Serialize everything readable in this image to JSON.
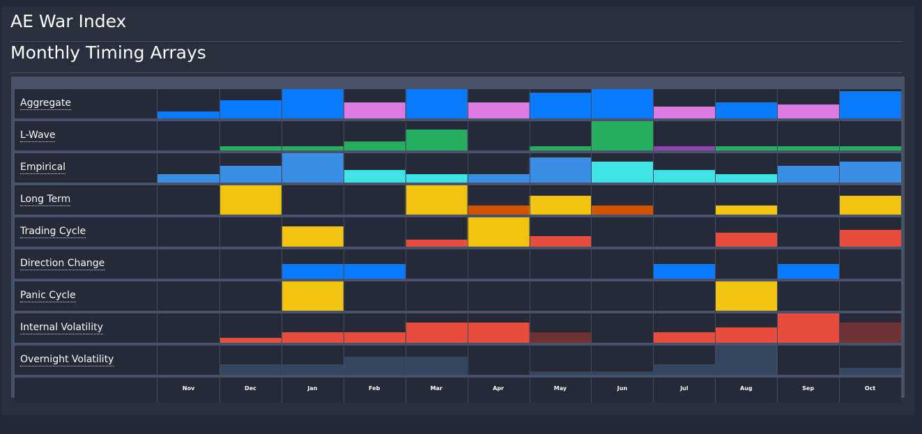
{
  "header": {
    "title": "AE War Index",
    "subtitle": "Monthly Timing Arrays"
  },
  "chart_data": {
    "type": "heatmap",
    "categories": [
      "Nov",
      "Dec",
      "Jan",
      "Feb",
      "Mar",
      "Apr",
      "May",
      "Jun",
      "Jul",
      "Aug",
      "Sep",
      "Oct"
    ],
    "value_scale": [
      0,
      100
    ],
    "rows": [
      {
        "name": "Aggregate",
        "values": [
          24,
          62,
          100,
          55,
          100,
          55,
          87,
          100,
          40,
          55,
          47,
          93
        ],
        "colors": [
          "#0a7bff",
          "#0a7bff",
          "#0a7bff",
          "#dd79e2",
          "#0a7bff",
          "#dd79e2",
          "#0a7bff",
          "#0a7bff",
          "#dd79e2",
          "#0a7bff",
          "#dd79e2",
          "#0a7bff"
        ]
      },
      {
        "name": "L-Wave",
        "values": [
          0,
          14,
          14,
          30,
          72,
          0,
          14,
          100,
          14,
          14,
          14,
          14
        ],
        "colors": [
          "#27ae60",
          "#27ae60",
          "#27ae60",
          "#27ae60",
          "#27ae60",
          "#27ae60",
          "#27ae60",
          "#27ae60",
          "#8e44ad",
          "#27ae60",
          "#27ae60",
          "#27ae60"
        ]
      },
      {
        "name": "Empirical",
        "values": [
          29,
          58,
          100,
          43,
          29,
          29,
          86,
          72,
          43,
          29,
          58,
          72
        ],
        "colors": [
          "#3a8ee6",
          "#3a8ee6",
          "#3a8ee6",
          "#3ee3e6",
          "#3ee3e6",
          "#3a8ee6",
          "#3a8ee6",
          "#3ee3e6",
          "#3ee3e6",
          "#3ee3e6",
          "#3a8ee6",
          "#3a8ee6"
        ]
      },
      {
        "name": "Long Term",
        "values": [
          0,
          100,
          0,
          0,
          100,
          30,
          65,
          30,
          0,
          30,
          0,
          65
        ],
        "colors": [
          "#f1c40f",
          "#f1c40f",
          "#f1c40f",
          "#f1c40f",
          "#f1c40f",
          "#d35400",
          "#f1c40f",
          "#d35400",
          "#f1c40f",
          "#f1c40f",
          "#f1c40f",
          "#f1c40f"
        ]
      },
      {
        "name": "Trading Cycle",
        "values": [
          0,
          0,
          70,
          0,
          23,
          100,
          35,
          0,
          0,
          48,
          0,
          58
        ],
        "colors": [
          "#e74c3c",
          "#e74c3c",
          "#f1c40f",
          "#e74c3c",
          "#e74c3c",
          "#f1c40f",
          "#e74c3c",
          "#e74c3c",
          "#e74c3c",
          "#e74c3c",
          "#e74c3c",
          "#e74c3c"
        ]
      },
      {
        "name": "Direction Change",
        "values": [
          0,
          0,
          50,
          50,
          0,
          0,
          0,
          0,
          50,
          0,
          50,
          0
        ],
        "colors": [
          "#0a7bff",
          "#0a7bff",
          "#0a7bff",
          "#0a7bff",
          "#0a7bff",
          "#0a7bff",
          "#0a7bff",
          "#0a7bff",
          "#0a7bff",
          "#0a7bff",
          "#0a7bff",
          "#0a7bff"
        ]
      },
      {
        "name": "Panic Cycle",
        "values": [
          0,
          0,
          100,
          0,
          0,
          0,
          0,
          0,
          0,
          100,
          0,
          0
        ],
        "colors": [
          "#f1c40f",
          "#f1c40f",
          "#f1c40f",
          "#f1c40f",
          "#f1c40f",
          "#f1c40f",
          "#f1c40f",
          "#f1c40f",
          "#f1c40f",
          "#f1c40f",
          "#f1c40f",
          "#f1c40f"
        ]
      },
      {
        "name": "Internal Volatility",
        "values": [
          0,
          17,
          35,
          35,
          68,
          68,
          35,
          0,
          35,
          52,
          100,
          68
        ],
        "colors": [
          "#e74c3c",
          "#e74c3c",
          "#e74c3c",
          "#e74c3c",
          "#e74c3c",
          "#e74c3c",
          "#6e3232",
          "#e74c3c",
          "#e74c3c",
          "#e74c3c",
          "#e74c3c",
          "#6e3232"
        ]
      },
      {
        "name": "Overnight Volatility",
        "values": [
          0,
          35,
          35,
          62,
          62,
          0,
          12,
          12,
          35,
          100,
          0,
          24
        ],
        "colors": [
          "#34475e",
          "#34475e",
          "#34475e",
          "#34475e",
          "#34475e",
          "#34475e",
          "#34475e",
          "#34475e",
          "#34475e",
          "#34475e",
          "#34475e",
          "#34475e"
        ]
      }
    ],
    "grid": true,
    "legend": "none"
  }
}
